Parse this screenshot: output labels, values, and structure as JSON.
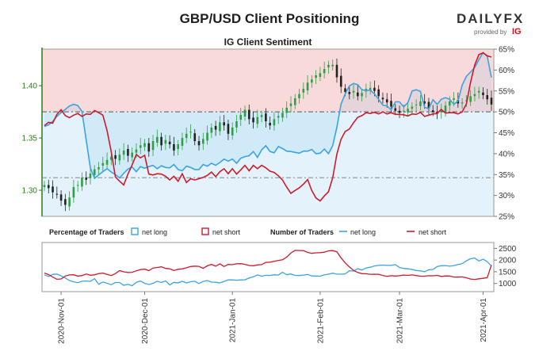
{
  "header": {
    "title": "GBP/USD Client Positioning",
    "brand": "DAILYFX",
    "provided_by": "provided by",
    "provider": "IG"
  },
  "colors": {
    "net_long": "#3aa3e3",
    "net_short": "#cc1b2b",
    "candle_up": "#2e9f44",
    "candle_down": "#222222",
    "long_fill": "#e3f2fb",
    "short_fill": "#f9dada",
    "left_axis": "#2d7a1e"
  },
  "chart_data": [
    {
      "type": "candlestick+line",
      "title": "IG Client Sentiment",
      "x_ticks": [
        "2020-Nov-01",
        "2020-Dec-01",
        "2021-Jan-01",
        "2021-Feb-01",
        "2021-Mar-01",
        "2021-Apr-01"
      ],
      "y_left": {
        "ticks": [
          "1.30",
          "1.35",
          "1.40"
        ],
        "range": [
          1.275,
          1.435
        ]
      },
      "y_right": {
        "ticks": [
          "25%",
          "30%",
          "35%",
          "40%",
          "45%",
          "50%",
          "55%",
          "60%",
          "65%"
        ],
        "range": [
          25,
          65
        ]
      },
      "reference_lines": {
        "price": 1.38,
        "percent": 50,
        "low_price": 1.312
      },
      "price_close": [
        1.305,
        1.302,
        1.298,
        1.296,
        1.29,
        1.286,
        1.293,
        1.303,
        1.305,
        1.312,
        1.31,
        1.316,
        1.32,
        1.322,
        1.326,
        1.329,
        1.332,
        1.33,
        1.334,
        1.338,
        1.333,
        1.336,
        1.339,
        1.343,
        1.345,
        1.337,
        1.347,
        1.351,
        1.343,
        1.348,
        1.344,
        1.338,
        1.344,
        1.35,
        1.354,
        1.356,
        1.347,
        1.343,
        1.349,
        1.355,
        1.36,
        1.358,
        1.365,
        1.362,
        1.354,
        1.36,
        1.366,
        1.372,
        1.377,
        1.368,
        1.365,
        1.37,
        1.372,
        1.366,
        1.362,
        1.368,
        1.371,
        1.374,
        1.379,
        1.383,
        1.388,
        1.392,
        1.397,
        1.403,
        1.406,
        1.41,
        1.412,
        1.416,
        1.42,
        1.42,
        1.408,
        1.399,
        1.394,
        1.392,
        1.395,
        1.39,
        1.393,
        1.397,
        1.398,
        1.395,
        1.39,
        1.387,
        1.384,
        1.38,
        1.376,
        1.374,
        1.376,
        1.378,
        1.38,
        1.382,
        1.385,
        1.383,
        1.378,
        1.375,
        1.373,
        1.376,
        1.381,
        1.385,
        1.388,
        1.383,
        1.384,
        1.386,
        1.39,
        1.392,
        1.395,
        1.391,
        1.387,
        1.382
      ],
      "series": [
        {
          "name": "net long",
          "values": [
            46.5,
            46.9,
            47.7,
            48.9,
            49.8,
            50.6,
            51.4,
            51.8,
            51.5,
            50.1,
            43.3,
            36.6,
            34.1,
            34.9,
            35.7,
            36.4,
            35.6,
            35.0,
            34.2,
            35.3,
            36.3,
            36.8,
            35.7,
            36.9,
            36.5,
            36.9,
            37.2,
            36.4,
            37.1,
            36.7,
            36.6,
            37.4,
            36.2,
            35.9,
            37.0,
            36.7,
            36.2,
            36.2,
            37.4,
            37.0,
            37.7,
            37.2,
            37.9,
            38.7,
            38.2,
            38.7,
            37.7,
            38.9,
            39.3,
            39.5,
            40.5,
            39.1,
            40.9,
            41.9,
            40.5,
            40.2,
            41.7,
            41.2,
            40.6,
            40.5,
            40.3,
            40.1,
            40.6,
            40.6,
            41.0,
            40.0,
            40.1,
            41.1,
            40.0,
            41.9,
            46.3,
            51.8,
            54.3,
            56.2,
            56.8,
            56.5,
            55.3,
            55.1,
            55.2,
            54.3,
            53.0,
            51.6,
            51.4,
            50.5,
            52.4,
            52.4,
            51.2,
            52.2,
            55.0,
            55.3,
            54.9,
            51.1,
            50.7,
            52.9,
            51.8,
            53.0,
            53.4,
            53.0,
            51.8,
            52.6,
            56.4,
            58.5,
            59.5,
            60.6,
            62.5,
            64.2,
            63.3,
            58.2
          ]
        },
        {
          "name": "net short",
          "values": [
            46.7,
            47.5,
            47.3,
            49.4,
            50.5,
            49.1,
            48.6,
            49.2,
            49.6,
            48.9,
            49.5,
            49.4,
            50.3,
            49.8,
            49.2,
            45.5,
            40.5,
            34.4,
            33.4,
            32.5,
            35.1,
            37.3,
            39.8,
            39.0,
            39.6,
            35.1,
            34.9,
            35.2,
            35.1,
            34.6,
            33.7,
            34.6,
            33.4,
            35.2,
            33.1,
            34.0,
            33.7,
            34.0,
            34.3,
            34.8,
            35.6,
            34.5,
            35.7,
            36.4,
            35.2,
            36.4,
            35.1,
            36.1,
            37.2,
            35.9,
            37.2,
            36.4,
            37.2,
            36.6,
            35.8,
            35.5,
            34.7,
            33.7,
            32.0,
            30.5,
            31.2,
            31.8,
            32.7,
            33.8,
            31.2,
            29.4,
            28.7,
            29.9,
            30.9,
            34.2,
            39.9,
            43.4,
            45.3,
            45.9,
            47.4,
            48.7,
            49.1,
            49.8,
            49.6,
            49.9,
            49.5,
            50.0,
            49.5,
            49.8,
            49.4,
            49.4,
            49.3,
            49.0,
            49.5,
            49.4,
            49.9,
            48.9,
            49.2,
            49.5,
            49.6,
            50.6,
            49.7,
            49.8,
            49.8,
            49.5,
            50.0,
            51.9,
            57.0,
            61.2,
            63.7,
            64.1,
            63.4,
            63.1
          ]
        }
      ]
    },
    {
      "type": "line",
      "title": "Percentage of Traders",
      "number_title": "Number of Traders",
      "legend": [
        "net long",
        "net short",
        "net long",
        "net short"
      ],
      "y_right": {
        "ticks": [
          "1000",
          "1500",
          "2000",
          "2500"
        ],
        "range": [
          650,
          2750
        ]
      },
      "series": [
        {
          "name": "net long",
          "values": [
            1367,
            1300,
            1385,
            1401,
            1323,
            1231,
            1125,
            1069,
            1033,
            1095,
            1108,
            1088,
            1205,
            966,
            1063,
            1006,
            949,
            1040,
            1038,
            921,
            962,
            903,
            1048,
            1100,
            1005,
            954,
            1005,
            1094,
            1038,
            1106,
            939,
            1047,
            1027,
            1091,
            1018,
            1073,
            1095,
            996,
            1086,
            1123,
            1055,
            1051,
            1024,
            1087,
            1152,
            1152,
            1139,
            1152,
            1153,
            1232,
            1285,
            1366,
            1310,
            1349,
            1341,
            1373,
            1359,
            1475,
            1373,
            1405,
            1346,
            1337,
            1358,
            1385,
            1320,
            1316,
            1311,
            1373,
            1395,
            1440,
            1399,
            1396,
            1410,
            1542,
            1526,
            1629,
            1570,
            1662,
            1694,
            1749,
            1771,
            1786,
            1770,
            1773,
            1804,
            1683,
            1642,
            1624,
            1598,
            1554,
            1539,
            1499,
            1589,
            1598,
            1719,
            1758,
            1765,
            1736,
            1765,
            1807,
            1846,
            1967,
            2054,
            2087,
            1961,
            2037,
            1933,
            1743
          ]
        },
        {
          "name": "net short",
          "values": [
            1447,
            1378,
            1272,
            1179,
            1193,
            1316,
            1363,
            1370,
            1313,
            1338,
            1401,
            1352,
            1367,
            1418,
            1444,
            1387,
            1336,
            1423,
            1549,
            1496,
            1469,
            1475,
            1541,
            1591,
            1612,
            1549,
            1661,
            1683,
            1711,
            1642,
            1624,
            1554,
            1606,
            1623,
            1671,
            1724,
            1740,
            1729,
            1647,
            1755,
            1814,
            1738,
            1840,
            1725,
            1813,
            1801,
            1841,
            1846,
            1816,
            1769,
            1758,
            1791,
            1804,
            1901,
            1910,
            1948,
            1984,
            2011,
            2122,
            2303,
            2415,
            2407,
            2402,
            2327,
            2286,
            2311,
            2318,
            2336,
            2393,
            2403,
            2355,
            2095,
            1878,
            1705,
            1559,
            1468,
            1418,
            1411,
            1391,
            1395,
            1393,
            1340,
            1305,
            1332,
            1318,
            1330,
            1359,
            1344,
            1365,
            1338,
            1311,
            1310,
            1331,
            1327,
            1345,
            1302,
            1322,
            1317,
            1272,
            1269,
            1281,
            1243,
            1188,
            1170,
            1200,
            1220,
            1246,
            1790
          ]
        }
      ],
      "x_ticks": [
        "2020-Nov-01",
        "2020-Dec-01",
        "2021-Jan-01",
        "2021-Feb-01",
        "2021-Mar-01",
        "2021-Apr-01"
      ]
    }
  ]
}
